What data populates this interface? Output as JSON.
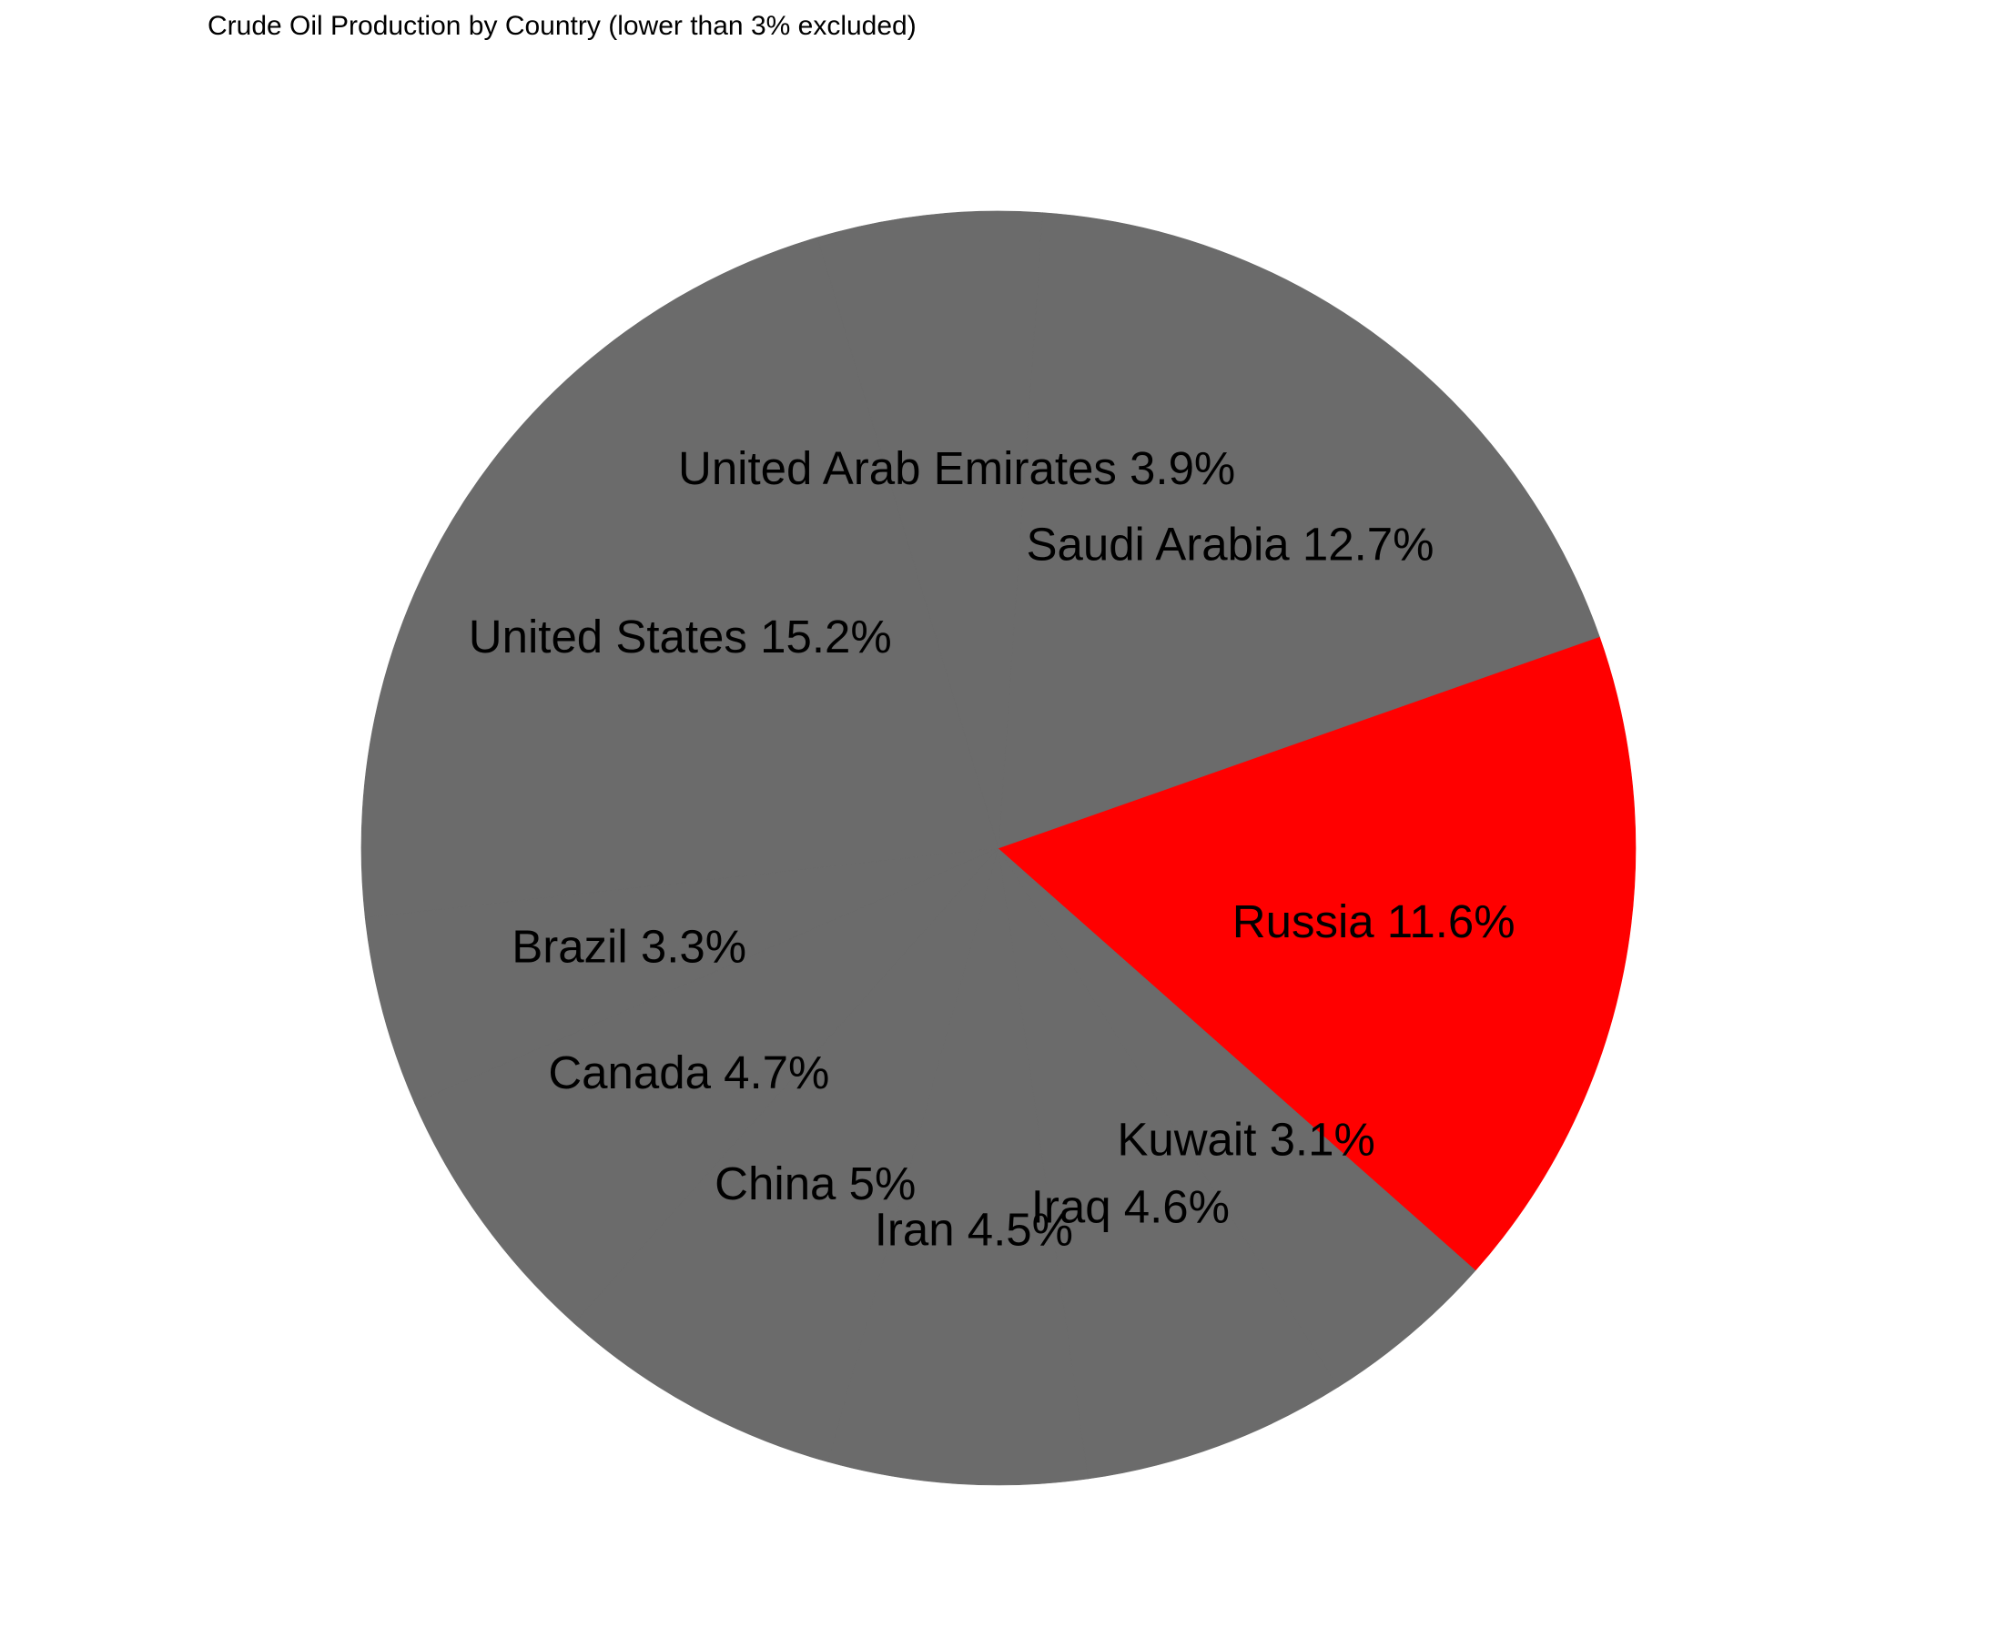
{
  "chart_data": {
    "type": "pie",
    "title": "Crude Oil Production by Country (lower than 3% excluded)",
    "slices": [
      {
        "label": "United States",
        "value": 15.2,
        "display": "United States 15.2%",
        "color": "#6b6b6b"
      },
      {
        "label": "Brazil",
        "value": 3.3,
        "display": "Brazil 3.3%",
        "color": "#6b6b6b"
      },
      {
        "label": "Canada",
        "value": 4.7,
        "display": "Canada 4.7%",
        "color": "#6b6b6b"
      },
      {
        "label": "China",
        "value": 5,
        "display": "China 5%",
        "color": "#6b6b6b"
      },
      {
        "label": "Iran",
        "value": 4.5,
        "display": "Iran 4.5%",
        "color": "#6b6b6b"
      },
      {
        "label": "Iraq",
        "value": 4.6,
        "display": "Iraq 4.6%",
        "color": "#6b6b6b"
      },
      {
        "label": "Kuwait",
        "value": 3.1,
        "display": "Kuwait 3.1%",
        "color": "#6b6b6b"
      },
      {
        "label": "Russia",
        "value": 11.6,
        "display": "Russia 11.6%",
        "color": "#ff0000"
      },
      {
        "label": "Saudi Arabia",
        "value": 12.7,
        "display": "Saudi Arabia 12.7%",
        "color": "#6b6b6b"
      },
      {
        "label": "United Arab Emirates",
        "value": 3.9,
        "display": "United Arab Emirates 3.9%",
        "color": "#6b6b6b"
      }
    ],
    "legend": "none"
  }
}
